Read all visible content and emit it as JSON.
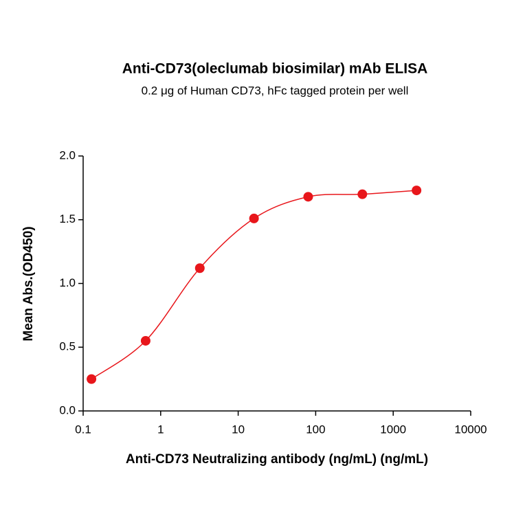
{
  "chart_data": {
    "type": "line",
    "title": "Anti-CD73(oleclumab biosimilar) mAb ELISA",
    "subtitle": "0.2 μg of Human CD73, hFc tagged protein per well",
    "x_label": "Anti-CD73 Neutralizing antibody (ng/mL) (ng/mL)",
    "y_label": "Mean Abs.(OD450)",
    "x": [
      0.128,
      0.64,
      3.2,
      16,
      80,
      400,
      2000
    ],
    "series": [
      {
        "color": "#e8161b",
        "values": [
          0.25,
          0.55,
          1.12,
          1.51,
          1.68,
          1.7,
          1.73
        ]
      }
    ],
    "x_scale": "log",
    "xlim": [
      0.1,
      10000
    ],
    "xticks": [
      0.1,
      1,
      10,
      100,
      1000,
      10000
    ],
    "ylim": [
      0,
      2.0
    ],
    "yticks": [
      {
        "value": 0,
        "label": "0.0"
      },
      {
        "value": 0.5,
        "label": "0.5"
      },
      {
        "value": 1.0,
        "label": "1.0"
      },
      {
        "value": 1.5,
        "label": "1.5"
      },
      {
        "value": 2.0,
        "label": "2.0"
      }
    ]
  }
}
